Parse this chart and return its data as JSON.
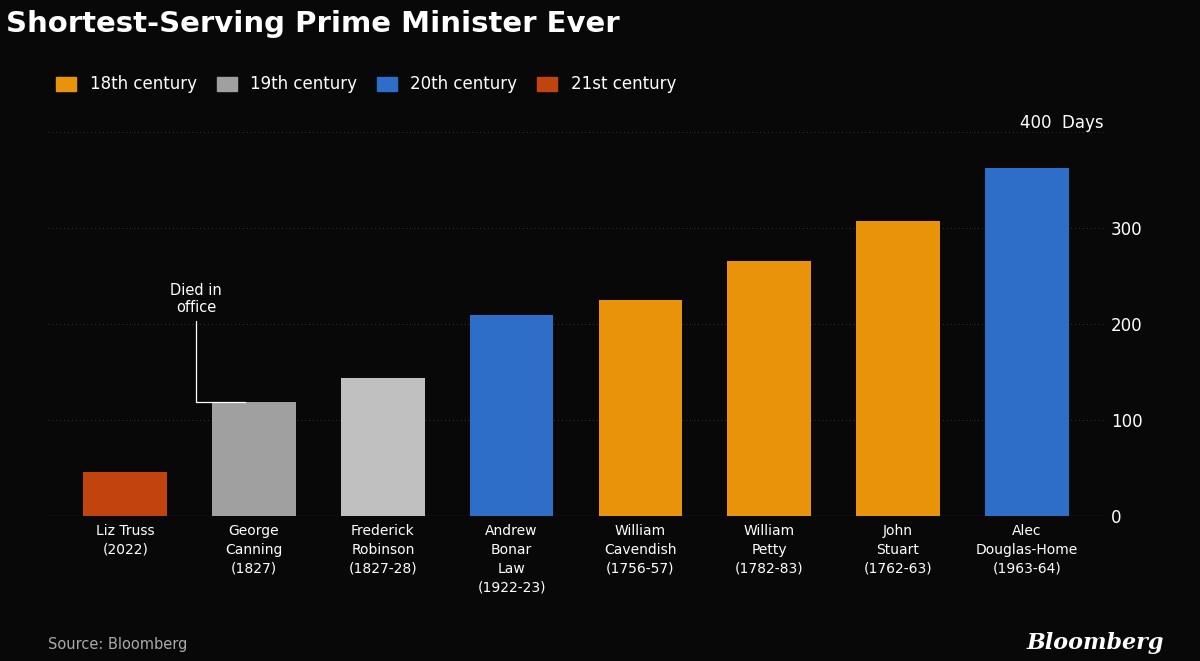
{
  "title": "Shortest-Serving Prime Minister Ever",
  "background_color": "#080808",
  "text_color": "#ffffff",
  "source": "Source: Bloomberg",
  "categories": [
    "Liz Truss\n(2022)",
    "George\nCanning\n(1827)",
    "Frederick\nRobinson\n(1827-28)",
    "Andrew\nBonar\nLaw\n(1922-23)",
    "William\nCavendish\n(1756-57)",
    "William\nPetty\n(1782-83)",
    "John\nStuart\n(1762-63)",
    "Alec\nDouglas-Home\n(1963-64)"
  ],
  "values": [
    45,
    119,
    144,
    209,
    225,
    266,
    307,
    363
  ],
  "colors": [
    "#c1440e",
    "#a0a0a0",
    "#c0c0c0",
    "#2e6ec8",
    "#e8930a",
    "#e8930a",
    "#e8930a",
    "#2e6ec8"
  ],
  "century_labels": [
    "18th century",
    "19th century",
    "20th century",
    "21st century"
  ],
  "century_colors": [
    "#e8930a",
    "#a0a0a0",
    "#2e6ec8",
    "#c1440e"
  ],
  "ylim": [
    0,
    400
  ],
  "yticks": [
    0,
    100,
    200,
    300
  ],
  "annotation_text": "Died in\noffice",
  "annotation_bar_index": 1,
  "annotation_value": 119,
  "grid_color": "#383838",
  "days_label": "400  Days"
}
